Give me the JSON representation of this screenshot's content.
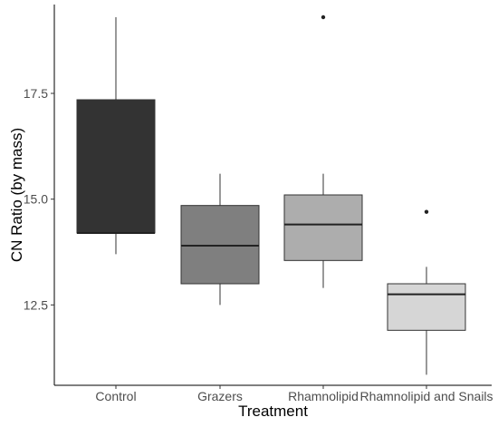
{
  "chart_data": {
    "type": "box",
    "title": "",
    "xlabel": "Treatment",
    "ylabel": "CN Ratio (by mass)",
    "ylim": [
      10.6,
      19.6
    ],
    "yticks": [
      {
        "value": 12.5,
        "label": "12.5"
      },
      {
        "value": 15.0,
        "label": "15.0"
      },
      {
        "value": 17.5,
        "label": "17.5"
      }
    ],
    "grid": false,
    "legend": "none",
    "categories": [
      "Control",
      "Grazers",
      "Rhamnolipid",
      "Rhamnolipid and Snails"
    ],
    "boxes": [
      {
        "category": "Control",
        "fill": "#333333",
        "whisker_low": 13.7,
        "q1": 14.2,
        "median": 14.2,
        "q3": 17.35,
        "whisker_high": 19.3,
        "outliers": []
      },
      {
        "category": "Grazers",
        "fill": "#7f7f7f",
        "whisker_low": 12.5,
        "q1": 13.0,
        "median": 13.9,
        "q3": 14.85,
        "whisker_high": 15.6,
        "outliers": []
      },
      {
        "category": "Rhamnolipid",
        "fill": "#adadad",
        "whisker_low": 12.9,
        "q1": 13.55,
        "median": 14.4,
        "q3": 15.1,
        "whisker_high": 15.6,
        "outliers": [
          19.3
        ]
      },
      {
        "category": "Rhamnolipid and Snails",
        "fill": "#d6d6d6",
        "whisker_low": 10.85,
        "q1": 11.9,
        "median": 12.75,
        "q3": 13.0,
        "whisker_high": 13.4,
        "outliers": [
          14.7
        ]
      }
    ]
  }
}
